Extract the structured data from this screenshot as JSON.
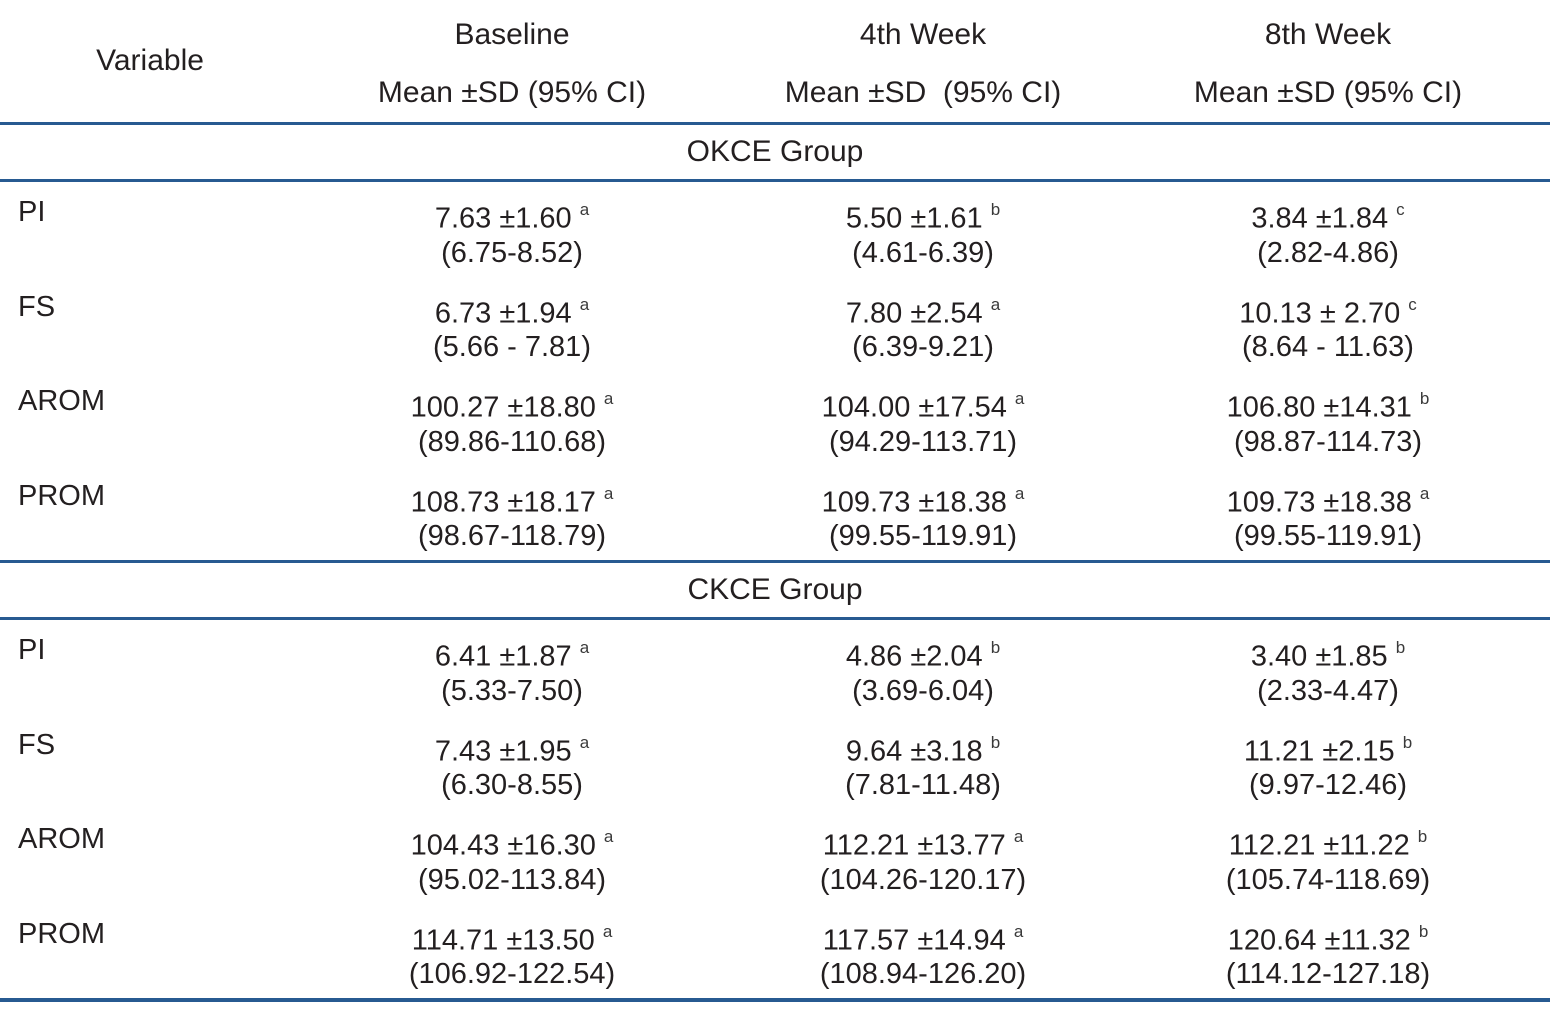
{
  "table": {
    "rule_color": "#275a91",
    "text_color": "#231f20",
    "header": {
      "variable_label": "Variable",
      "columns": [
        {
          "title": "Baseline",
          "subtitle": "Mean ±SD (95% CI)"
        },
        {
          "title": "4th Week",
          "subtitle": "Mean ±SD  (95% CI)"
        },
        {
          "title": "8th Week",
          "subtitle": "Mean ±SD (95% CI)"
        }
      ]
    },
    "groups": [
      {
        "name": "OKCE Group",
        "rows": [
          {
            "variable": "PI",
            "cells": [
              {
                "mean": "7.63 ±1.60",
                "sup": "a",
                "ci": "(6.75-8.52)"
              },
              {
                "mean": "5.50 ±1.61",
                "sup": "b",
                "ci": "(4.61-6.39)"
              },
              {
                "mean": "3.84 ±1.84",
                "sup": "c",
                "ci": "(2.82-4.86)"
              }
            ]
          },
          {
            "variable": "FS",
            "cells": [
              {
                "mean": "6.73 ±1.94",
                "sup": "a",
                "ci": "(5.66 - 7.81)"
              },
              {
                "mean": "7.80 ±2.54",
                "sup": "a",
                "ci": "(6.39-9.21)"
              },
              {
                "mean": "10.13 ± 2.70",
                "sup": "c",
                "ci": "(8.64 - 11.63)"
              }
            ]
          },
          {
            "variable": "AROM",
            "cells": [
              {
                "mean": "100.27 ±18.80",
                "sup": "a",
                "ci": "(89.86-110.68)"
              },
              {
                "mean": "104.00 ±17.54",
                "sup": "a",
                "ci": "(94.29-113.71)"
              },
              {
                "mean": "106.80 ±14.31",
                "sup": "b",
                "ci": "(98.87-114.73)"
              }
            ]
          },
          {
            "variable": "PROM",
            "cells": [
              {
                "mean": "108.73 ±18.17",
                "sup": "a",
                "ci": "(98.67-118.79)"
              },
              {
                "mean": "109.73 ±18.38",
                "sup": "a",
                "ci": "(99.55-119.91)"
              },
              {
                "mean": "109.73 ±18.38",
                "sup": "a",
                "ci": "(99.55-119.91)"
              }
            ]
          }
        ]
      },
      {
        "name": "CKCE Group",
        "rows": [
          {
            "variable": "PI",
            "cells": [
              {
                "mean": "6.41 ±1.87",
                "sup": "a",
                "ci": "(5.33-7.50)"
              },
              {
                "mean": "4.86 ±2.04",
                "sup": "b",
                "ci": "(3.69-6.04)"
              },
              {
                "mean": "3.40 ±1.85",
                "sup": "b",
                "ci": "(2.33-4.47)"
              }
            ]
          },
          {
            "variable": "FS",
            "cells": [
              {
                "mean": "7.43 ±1.95",
                "sup": "a",
                "ci": "(6.30-8.55)"
              },
              {
                "mean": "9.64 ±3.18",
                "sup": "b",
                "ci": "(7.81-11.48)"
              },
              {
                "mean": "11.21 ±2.15",
                "sup": "b",
                "ci": "(9.97-12.46)"
              }
            ]
          },
          {
            "variable": "AROM",
            "cells": [
              {
                "mean": "104.43 ±16.30",
                "sup": "a",
                "ci": "(95.02-113.84)"
              },
              {
                "mean": "112.21 ±13.77",
                "sup": "a",
                "ci": "(104.26-120.17)"
              },
              {
                "mean": "112.21 ±11.22",
                "sup": "b",
                "ci": "(105.74-118.69)"
              }
            ]
          },
          {
            "variable": "PROM",
            "cells": [
              {
                "mean": "114.71 ±13.50",
                "sup": "a",
                "ci": "(106.92-122.54)"
              },
              {
                "mean": "117.57 ±14.94",
                "sup": "a",
                "ci": "(108.94-126.20)"
              },
              {
                "mean": "120.64 ±11.32",
                "sup": "b",
                "ci": "(114.12-127.18)"
              }
            ]
          }
        ]
      }
    ]
  }
}
